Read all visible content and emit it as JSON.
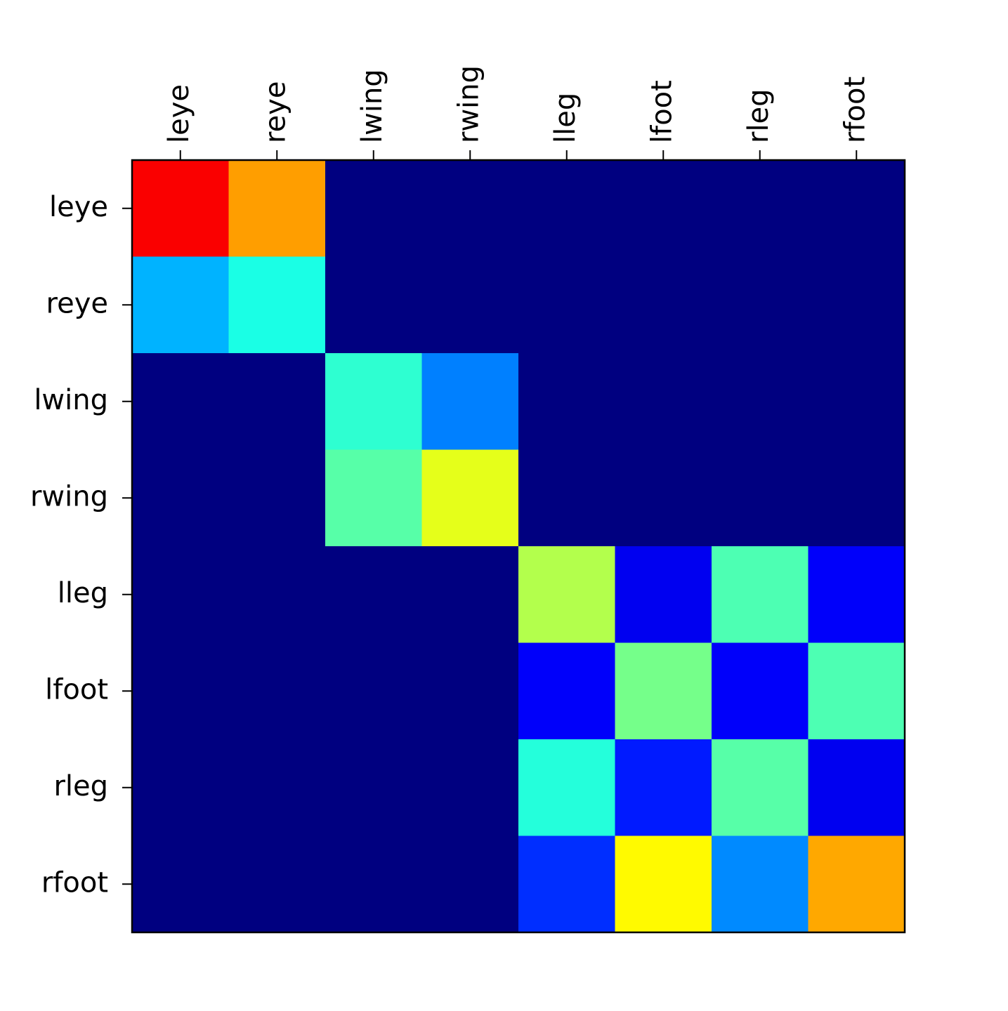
{
  "chart_data": {
    "type": "heatmap",
    "colormap": "jet",
    "grid": false,
    "x_tick_position": "top",
    "x_tick_rotation": "vertical",
    "x_categories": [
      "leye",
      "reye",
      "lwing",
      "rwing",
      "lleg",
      "lfoot",
      "rleg",
      "rfoot"
    ],
    "y_categories": [
      "leye",
      "reye",
      "lwing",
      "rwing",
      "lleg",
      "lfoot",
      "rleg",
      "rfoot"
    ],
    "values": [
      [
        0.88,
        0.72,
        0.0,
        0.0,
        0.0,
        0.0,
        0.0,
        0.0
      ],
      [
        0.3,
        0.4,
        0.0,
        0.0,
        0.0,
        0.0,
        0.0,
        0.0
      ],
      [
        0.0,
        0.0,
        0.42,
        0.25,
        0.0,
        0.0,
        0.0,
        0.0
      ],
      [
        0.0,
        0.0,
        0.46,
        0.6,
        0.0,
        0.0,
        0.0,
        0.0
      ],
      [
        0.0,
        0.0,
        0.0,
        0.0,
        0.55,
        0.11,
        0.45,
        0.12
      ],
      [
        0.0,
        0.0,
        0.0,
        0.0,
        0.12,
        0.49,
        0.12,
        0.45
      ],
      [
        0.0,
        0.0,
        0.0,
        0.0,
        0.41,
        0.15,
        0.46,
        0.11
      ],
      [
        0.0,
        0.0,
        0.0,
        0.0,
        0.17,
        0.63,
        0.26,
        0.71
      ]
    ],
    "title": "",
    "xlabel": "",
    "ylabel": ""
  }
}
